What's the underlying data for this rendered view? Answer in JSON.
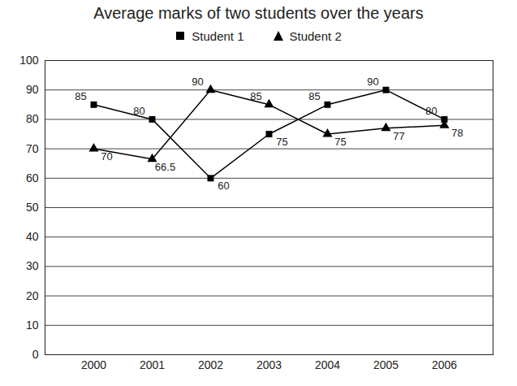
{
  "chart_data": {
    "type": "line",
    "title": "Average marks of two students over the years",
    "categories": [
      "2000",
      "2001",
      "2002",
      "2003",
      "2004",
      "2005",
      "2006"
    ],
    "series": [
      {
        "name": "Student 1",
        "color": "#000000",
        "marker": "square",
        "line_style": "solid",
        "values": [
          85,
          80,
          60,
          75,
          85,
          90,
          80
        ]
      },
      {
        "name": "Student 2",
        "color": "#000000",
        "marker": "triangle",
        "line_style": "solid",
        "values": [
          70,
          66.5,
          90,
          85,
          75,
          77,
          78
        ]
      }
    ],
    "ylim": [
      0,
      100
    ],
    "yticks": [
      0,
      10,
      20,
      30,
      40,
      50,
      60,
      70,
      80,
      90,
      100
    ],
    "grid": true,
    "legend": "top",
    "data_labels": true
  }
}
